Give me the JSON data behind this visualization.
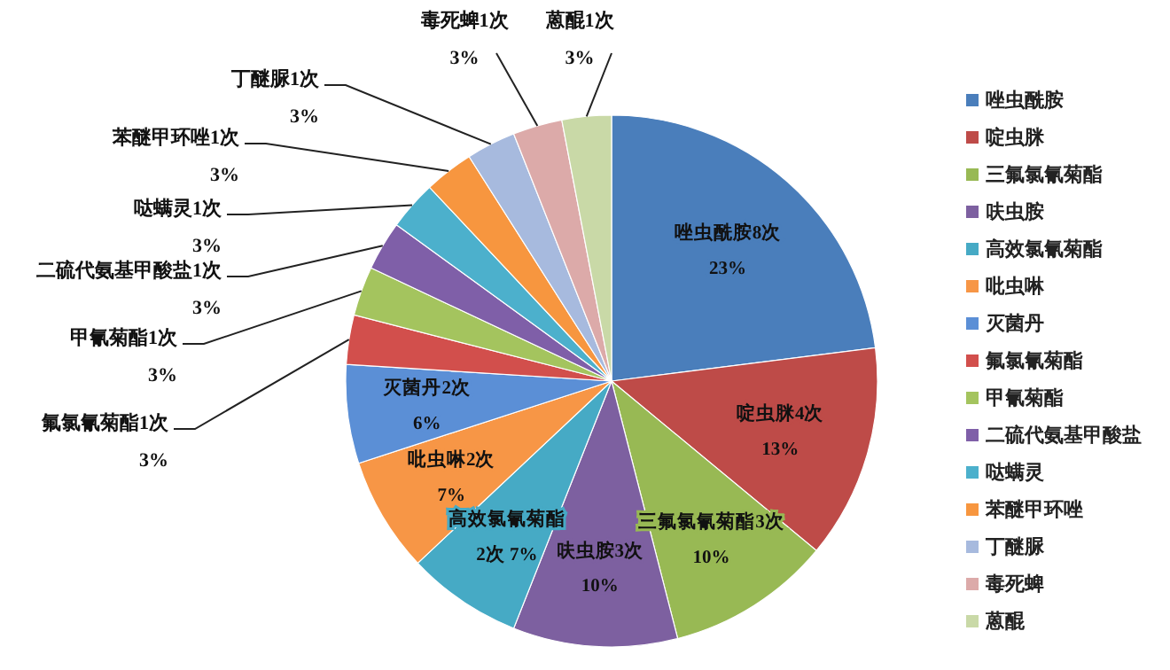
{
  "chart_data": {
    "type": "pie",
    "categories": [
      "唑虫酰胺",
      "啶虫脒",
      "三氟氯氰菊酯",
      "呋虫胺",
      "高效氯氰菊酯",
      "吡虫啉",
      "灭菌丹",
      "氟氯氰菊酯",
      "甲氰菊酯",
      "二硫代氨基甲酸盐",
      "哒螨灵",
      "苯醚甲环唑",
      "丁醚脲",
      "毒死蜱",
      "蒽醌"
    ],
    "values": [
      23,
      13,
      10,
      10,
      7,
      7,
      6,
      3,
      3,
      3,
      3,
      3,
      3,
      3,
      3
    ],
    "value_labels": [
      "唑虫酰胺8次\n23%",
      "啶虫脒4次\n13%",
      "三氟氯氰菊酯3次\n10%",
      "呋虫胺3次\n10%",
      "高效氯氰菊酯\n2次  7%",
      "吡虫啉2次\n7%",
      "灭菌丹2次\n6%",
      "氟氯氰菊酯1次\n3%",
      "甲氰菊酯1次\n3%",
      "二硫代氨基甲酸盐1次\n3%",
      "哒螨灵1次\n3%",
      "苯醚甲环唑1次\n3%",
      "丁醚脲1次\n3%",
      "毒死蜱1次\n3%",
      "蒽醌1次\n3%"
    ],
    "colors": [
      "#4a7ebb",
      "#be4b48",
      "#98b954",
      "#7d60a0",
      "#46aac5",
      "#f79646",
      "#5b8fd6",
      "#d24f4c",
      "#a4c45e",
      "#7f5fa8",
      "#4cb0cc",
      "#f7963f",
      "#a7bade",
      "#dcaaa9",
      "#c9d9a7"
    ],
    "legend": "right"
  }
}
